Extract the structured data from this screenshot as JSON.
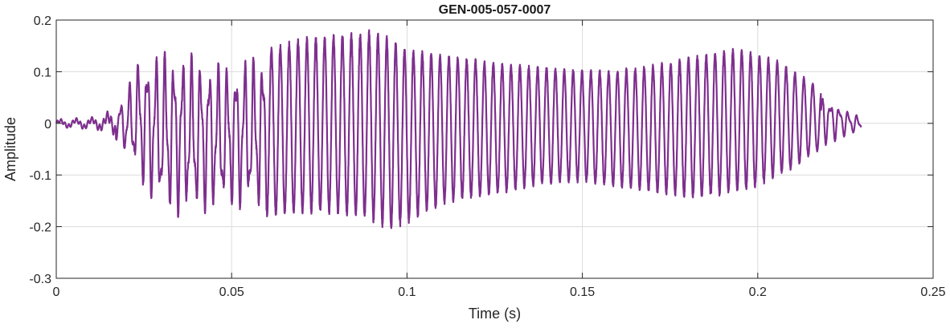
{
  "chart_data": {
    "type": "line",
    "title": "GEN-005-057-0007",
    "xlabel": "Time (s)",
    "ylabel": "Amplitude",
    "xlim": [
      0,
      0.25
    ],
    "ylim": [
      -0.3,
      0.2
    ],
    "grid": true,
    "x_ticks": [
      0,
      0.05,
      0.1,
      0.15,
      0.2,
      0.25
    ],
    "x_tick_labels": [
      "0",
      "0.05",
      "0.1",
      "0.15",
      "0.2",
      "0.25"
    ],
    "y_ticks": [
      -0.3,
      -0.2,
      -0.1,
      0,
      0.1,
      0.2
    ],
    "y_tick_labels": [
      "-0.3",
      "-0.2",
      "-0.1",
      "0",
      "0.1",
      "0.2"
    ],
    "series": [
      {
        "color": "#7e2f8e",
        "signal": {
          "t_start": 0,
          "t_end": 0.2295,
          "cycle_period_s": 0.00253,
          "envelope_top": [
            [
              0,
              0.008
            ],
            [
              0.005,
              0.01
            ],
            [
              0.01,
              0.012
            ],
            [
              0.013,
              0.018
            ],
            [
              0.017,
              0.03
            ],
            [
              0.02,
              0.06
            ],
            [
              0.023,
              0.12
            ],
            [
              0.026,
              0.13
            ],
            [
              0.03,
              0.14
            ],
            [
              0.035,
              0.14
            ],
            [
              0.04,
              0.13
            ],
            [
              0.045,
              0.12
            ],
            [
              0.05,
              0.115
            ],
            [
              0.055,
              0.13
            ],
            [
              0.06,
              0.14
            ],
            [
              0.065,
              0.15
            ],
            [
              0.07,
              0.16
            ],
            [
              0.075,
              0.165
            ],
            [
              0.08,
              0.17
            ],
            [
              0.085,
              0.17
            ],
            [
              0.09,
              0.175
            ],
            [
              0.095,
              0.16
            ],
            [
              0.1,
              0.14
            ],
            [
              0.105,
              0.135
            ],
            [
              0.11,
              0.13
            ],
            [
              0.115,
              0.125
            ],
            [
              0.12,
              0.12
            ],
            [
              0.125,
              0.115
            ],
            [
              0.13,
              0.11
            ],
            [
              0.135,
              0.108
            ],
            [
              0.14,
              0.106
            ],
            [
              0.145,
              0.103
            ],
            [
              0.15,
              0.1
            ],
            [
              0.155,
              0.1
            ],
            [
              0.16,
              0.1
            ],
            [
              0.165,
              0.105
            ],
            [
              0.17,
              0.11
            ],
            [
              0.175,
              0.115
            ],
            [
              0.18,
              0.125
            ],
            [
              0.185,
              0.13
            ],
            [
              0.19,
              0.138
            ],
            [
              0.195,
              0.14
            ],
            [
              0.2,
              0.13
            ],
            [
              0.205,
              0.12
            ],
            [
              0.21,
              0.1
            ],
            [
              0.215,
              0.08
            ],
            [
              0.22,
              0.055
            ],
            [
              0.225,
              0.03
            ],
            [
              0.2295,
              0.012
            ]
          ],
          "envelope_bottom": [
            [
              0,
              -0.008
            ],
            [
              0.005,
              -0.01
            ],
            [
              0.01,
              -0.013
            ],
            [
              0.013,
              -0.016
            ],
            [
              0.017,
              -0.03
            ],
            [
              0.02,
              -0.06
            ],
            [
              0.023,
              -0.1
            ],
            [
              0.026,
              -0.14
            ],
            [
              0.03,
              -0.17
            ],
            [
              0.035,
              -0.18
            ],
            [
              0.04,
              -0.175
            ],
            [
              0.045,
              -0.17
            ],
            [
              0.05,
              -0.165
            ],
            [
              0.055,
              -0.17
            ],
            [
              0.06,
              -0.175
            ],
            [
              0.065,
              -0.172
            ],
            [
              0.07,
              -0.17
            ],
            [
              0.075,
              -0.17
            ],
            [
              0.08,
              -0.172
            ],
            [
              0.085,
              -0.175
            ],
            [
              0.09,
              -0.185
            ],
            [
              0.095,
              -0.2
            ],
            [
              0.1,
              -0.19
            ],
            [
              0.105,
              -0.17
            ],
            [
              0.11,
              -0.155
            ],
            [
              0.115,
              -0.145
            ],
            [
              0.12,
              -0.14
            ],
            [
              0.125,
              -0.135
            ],
            [
              0.13,
              -0.128
            ],
            [
              0.135,
              -0.12
            ],
            [
              0.14,
              -0.115
            ],
            [
              0.145,
              -0.112
            ],
            [
              0.15,
              -0.11
            ],
            [
              0.155,
              -0.115
            ],
            [
              0.16,
              -0.12
            ],
            [
              0.165,
              -0.125
            ],
            [
              0.17,
              -0.13
            ],
            [
              0.175,
              -0.135
            ],
            [
              0.18,
              -0.14
            ],
            [
              0.185,
              -0.14
            ],
            [
              0.19,
              -0.135
            ],
            [
              0.195,
              -0.128
            ],
            [
              0.2,
              -0.12
            ],
            [
              0.205,
              -0.1
            ],
            [
              0.21,
              -0.085
            ],
            [
              0.215,
              -0.06
            ],
            [
              0.22,
              -0.04
            ],
            [
              0.225,
              -0.025
            ],
            [
              0.2295,
              -0.015
            ]
          ]
        }
      }
    ]
  }
}
